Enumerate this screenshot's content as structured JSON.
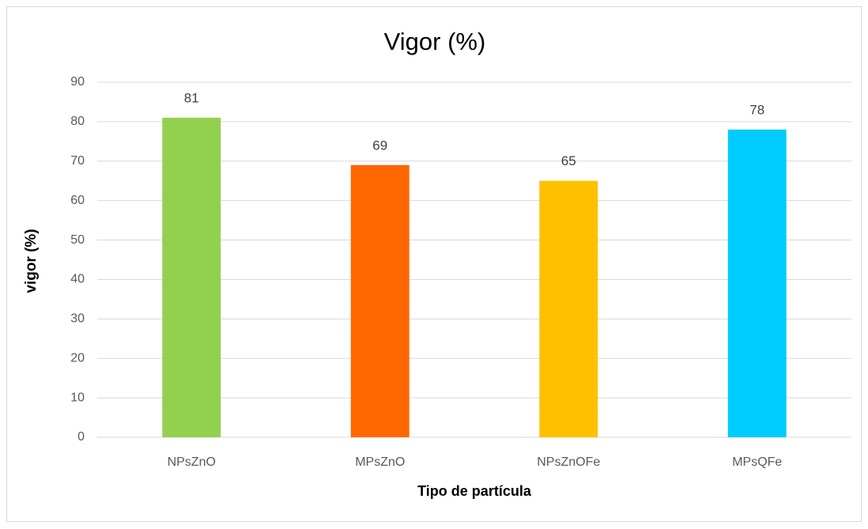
{
  "chart_data": {
    "type": "bar",
    "title": "Vigor (%)",
    "x_label": "Tipo de partícula",
    "y_label": "vigor (%)",
    "categories": [
      "NPsZnO",
      "MPsZnO",
      "NPsZnOFe",
      "MPsQFe"
    ],
    "values": [
      81,
      69,
      65,
      78
    ],
    "colors": [
      "#92d050",
      "#ff6600",
      "#ffc000",
      "#00ccff"
    ],
    "ylim": [
      0,
      90
    ],
    "yticks": [
      0,
      10,
      20,
      30,
      40,
      50,
      60,
      70,
      80,
      90
    ],
    "grid": true
  }
}
